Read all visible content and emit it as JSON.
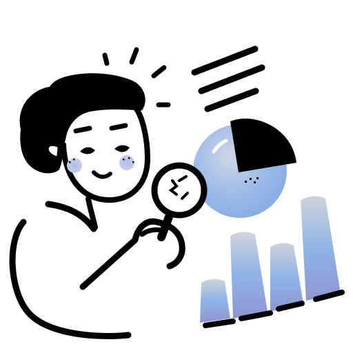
{
  "illustration": {
    "subject": "",
    "colors": {
      "ink": "#000000",
      "background": "#ffffff",
      "accent_blue": "#8fb4e6",
      "accent_purple": "#9aa2d6",
      "accent_gray": "#cfd3dc",
      "cheek": "#b7c7e8"
    },
    "icons": [
      "person-icon",
      "magnifying-glass-icon",
      "pie-chart-icon",
      "bar-chart-icon",
      "text-lines-icon",
      "sparkle-rays-icon"
    ]
  }
}
